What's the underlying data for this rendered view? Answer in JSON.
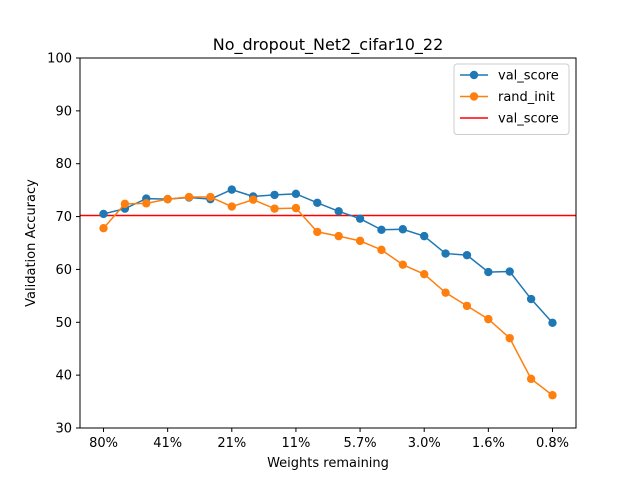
{
  "chart_data": {
    "type": "line",
    "title": "No_dropout_Net2_cifar10_22",
    "xlabel": "Weights remaining",
    "ylabel": "Validation Accuracy",
    "ylim": [
      30,
      100
    ],
    "yticks": [
      30,
      40,
      50,
      60,
      70,
      80,
      90,
      100
    ],
    "xtick_labels": [
      "80%",
      "41%",
      "21%",
      "11%",
      "5.7%",
      "3.0%",
      "1.6%",
      "0.8%"
    ],
    "xtick_positions": [
      0,
      3,
      6,
      9,
      12,
      15,
      18,
      21
    ],
    "x": [
      0,
      1,
      2,
      3,
      4,
      5,
      6,
      7,
      8,
      9,
      10,
      11,
      12,
      13,
      14,
      15,
      16,
      17,
      18,
      19,
      20,
      21
    ],
    "grid": false,
    "legend_position": "top-right",
    "series": [
      {
        "name": "val_score",
        "color": "#1f77b4",
        "marker": "circle",
        "values": [
          70.5,
          71.5,
          73.4,
          73.3,
          73.6,
          73.3,
          75.1,
          73.8,
          74.1,
          74.3,
          72.6,
          71.0,
          69.6,
          67.5,
          67.6,
          66.3,
          63.0,
          62.7,
          59.5,
          59.6,
          54.4,
          49.9
        ]
      },
      {
        "name": "rand_init",
        "color": "#ff7f0e",
        "marker": "circle",
        "values": [
          67.8,
          72.4,
          72.5,
          73.3,
          73.7,
          73.7,
          71.9,
          73.2,
          71.5,
          71.6,
          67.1,
          66.3,
          65.4,
          63.7,
          60.9,
          59.1,
          55.6,
          53.1,
          50.6,
          47.0,
          39.3,
          36.2
        ]
      }
    ],
    "hlines": [
      {
        "name": "val_score",
        "color": "#ff0000",
        "y": 70.2
      }
    ]
  }
}
